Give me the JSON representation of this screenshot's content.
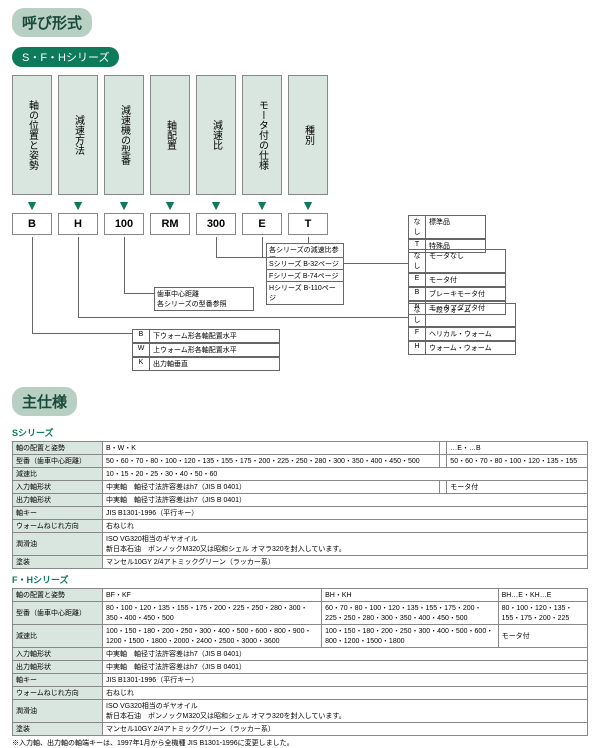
{
  "title": "呼び形式",
  "subtitle": "S・F・Hシリーズ",
  "columns": [
    "軸の位置と姿勢",
    "減速方法",
    "減速機の型番",
    "軸配置",
    "減速比",
    "モータ付の仕様",
    "種別"
  ],
  "codes": [
    "B",
    "H",
    "100",
    "RM",
    "300",
    "E",
    "T"
  ],
  "kind_table": [
    {
      "k": "なし",
      "v": "標準品"
    },
    {
      "k": "T",
      "v": "特殊品"
    }
  ],
  "motor_table": [
    {
      "k": "なし",
      "v": "モータなし"
    },
    {
      "k": "E",
      "v": "モータ付"
    },
    {
      "k": "B",
      "v": "ブレーキモータ付"
    },
    {
      "k": "N",
      "v": "モータアダプタ付"
    }
  ],
  "method_table": [
    {
      "k": "なし",
      "v": "一段ウォーム"
    },
    {
      "k": "F",
      "v": "ヘリカル・ウォーム"
    },
    {
      "k": "H",
      "v": "ウォーム・ウォーム"
    }
  ],
  "axis_table": [
    {
      "k": "B",
      "v": "下ウォーム形各軸配置水平"
    },
    {
      "k": "W",
      "v": "上ウォーム形各軸配置水平"
    },
    {
      "k": "K",
      "v": "出力軸垂直"
    }
  ],
  "ratio_note": "各シリーズの減速比参照",
  "series_note1": "Sシリーズ B-32ページ",
  "series_note2": "Fシリーズ B-74ページ",
  "series_note3": "Hシリーズ B-110ページ",
  "model_note": "歯車中心距離\n各シリーズの型番参照",
  "spec_title": "主仕様",
  "s_label": "Sシリーズ",
  "s_table": {
    "rows": [
      [
        "軸の配置と姿勢",
        "B・W・K",
        "",
        "…E・…B"
      ],
      [
        "型番（歯車中心距離）",
        "50・60・70・80・100・120・135・155・175・200・225・250・280・300・350・400・450・500",
        "",
        "50・60・70・80・100・120・135・155"
      ],
      [
        "減速比",
        "10・15・20・25・30・40・50・60",
        "",
        ""
      ],
      [
        "入力軸形状",
        "中実軸　軸径寸法許容差はh7（JIS B 0401）",
        "",
        "モータ付"
      ],
      [
        "出力軸形状",
        "中実軸　軸径寸法許容差はh7（JIS B 0401）",
        "",
        ""
      ],
      [
        "軸キー",
        "JIS B1301-1996（平行キー）",
        "",
        ""
      ],
      [
        "ウォームねじれ方向",
        "右ねじれ",
        "",
        ""
      ],
      [
        "潤滑油",
        "ISO VG320相当のギヤオイル\n新日本石油　ボンノックM320又は昭和シェル オマラ320を封入しています。",
        "",
        ""
      ],
      [
        "塗装",
        "マンセル10GY 2/4アトミックグリーン（ラッカー系）",
        "",
        ""
      ]
    ]
  },
  "fh_label": "F・Hシリーズ",
  "fh_table": {
    "rows": [
      [
        "軸の配置と姿勢",
        "BF・KF",
        "BH・KH",
        "BH…E・KH…E"
      ],
      [
        "型番（歯車中心距離）",
        "80・100・120・135・155・175・200・225・250・280・300・350・400・450・500",
        "60・70・80・100・120・135・155・175・200・225・250・280・300・350・400・450・500",
        "80・100・120・135・155・175・200・225"
      ],
      [
        "減速比",
        "100・150・180・200・250・300・400・500・600・800・900・1200・1500・1800・2000・2400・2500・3000・3600",
        "100・150・180・200・250・300・400・500・600・800・1200・1500・1800",
        "モータ付"
      ],
      [
        "入力軸形状",
        "中実軸　軸径寸法許容差はh7（JIS B 0401）",
        "",
        ""
      ],
      [
        "出力軸形状",
        "中実軸　軸径寸法許容差はh7（JIS B 0401）",
        "",
        ""
      ],
      [
        "軸キー",
        "JIS B1301-1996（平行キー）",
        "",
        ""
      ],
      [
        "ウォームねじれ方向",
        "右ねじれ",
        "",
        ""
      ],
      [
        "潤滑油",
        "ISO VG320相当のギヤオイル\n新日本石油　ボンノックM320又は昭和シェル オマラ320を封入しています。",
        "",
        ""
      ],
      [
        "塗装",
        "マンセル10GY 2/4アトミックグリーン（ラッカー系）",
        "",
        ""
      ]
    ]
  },
  "footnote": "※入力軸、出力軸の軸端キーは、1997年1月から全機種 JIS B1301-1996に変更しました。"
}
